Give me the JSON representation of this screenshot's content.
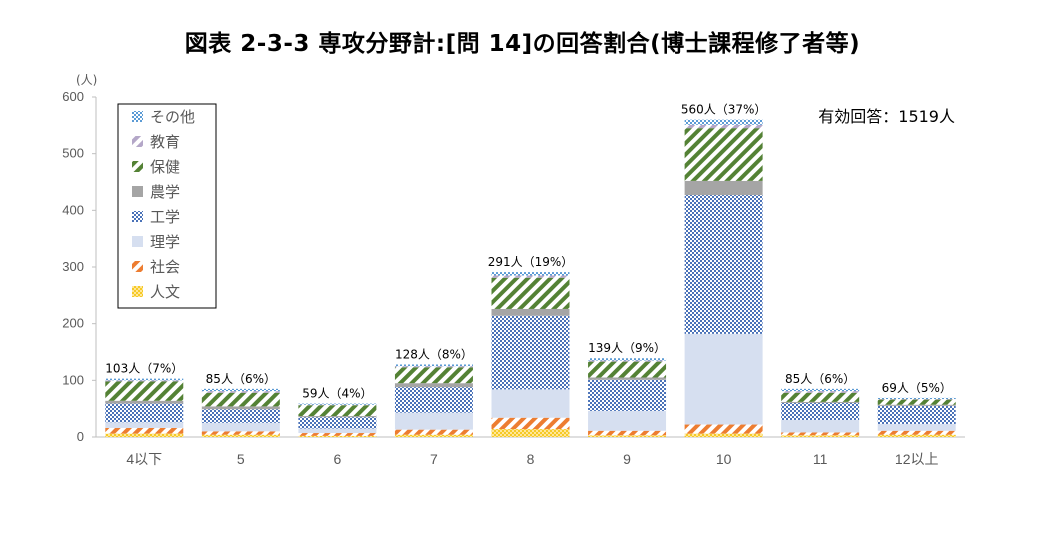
{
  "title": "図表 2-3-3  専攻分野計:[問 14]の回答割合(博士課程修了者等)",
  "chart_data": {
    "type": "bar",
    "stacked": true,
    "unit_label": "(人)",
    "categories": [
      "4以下",
      "5",
      "6",
      "7",
      "8",
      "9",
      "10",
      "11",
      "12以上"
    ],
    "ylim": [
      0,
      600
    ],
    "yticks": [
      0,
      100,
      200,
      300,
      400,
      500,
      600
    ],
    "grid": false,
    "legend_position": "top-left",
    "annotation": "有効回答：1519人",
    "totals_labels": [
      "103人（7%）",
      "85人（6%）",
      "59人（4%）",
      "128人（8%）",
      "291人（19%）",
      "139人（9%）",
      "560人（37%）",
      "85人（6%）",
      "69人（5%）"
    ],
    "totals": [
      103,
      85,
      59,
      128,
      291,
      139,
      560,
      85,
      69
    ],
    "series": [
      {
        "name": "人文",
        "color": "#F2C200",
        "pattern": "dots",
        "values": [
          6,
          4,
          2,
          4,
          14,
          3,
          6,
          3,
          4
        ]
      },
      {
        "name": "社会",
        "color": "#ED7D31",
        "pattern": "diag",
        "values": [
          10,
          6,
          5,
          9,
          20,
          8,
          16,
          5,
          7
        ]
      },
      {
        "name": "理学",
        "color": "#D6DFF0",
        "pattern": "solid",
        "values": [
          10,
          15,
          8,
          30,
          50,
          35,
          160,
          22,
          12
        ]
      },
      {
        "name": "工学",
        "color": "#4A72B8",
        "pattern": "check",
        "values": [
          33,
          24,
          20,
          45,
          130,
          55,
          245,
          30,
          32
        ]
      },
      {
        "name": "農学",
        "color": "#A5A5A5",
        "pattern": "solid",
        "values": [
          5,
          5,
          2,
          7,
          12,
          4,
          25,
          2,
          2
        ]
      },
      {
        "name": "保健",
        "color": "#548235",
        "pattern": "diag",
        "values": [
          34,
          24,
          19,
          28,
          55,
          28,
          93,
          16,
          9
        ]
      },
      {
        "name": "教育",
        "color": "#B4A7C8",
        "pattern": "diag",
        "values": [
          2,
          3,
          1,
          2,
          4,
          2,
          6,
          3,
          1
        ]
      },
      {
        "name": "その他",
        "color": "#5B9BD5",
        "pattern": "check",
        "values": [
          3,
          4,
          2,
          3,
          6,
          4,
          9,
          4,
          2
        ]
      }
    ]
  }
}
